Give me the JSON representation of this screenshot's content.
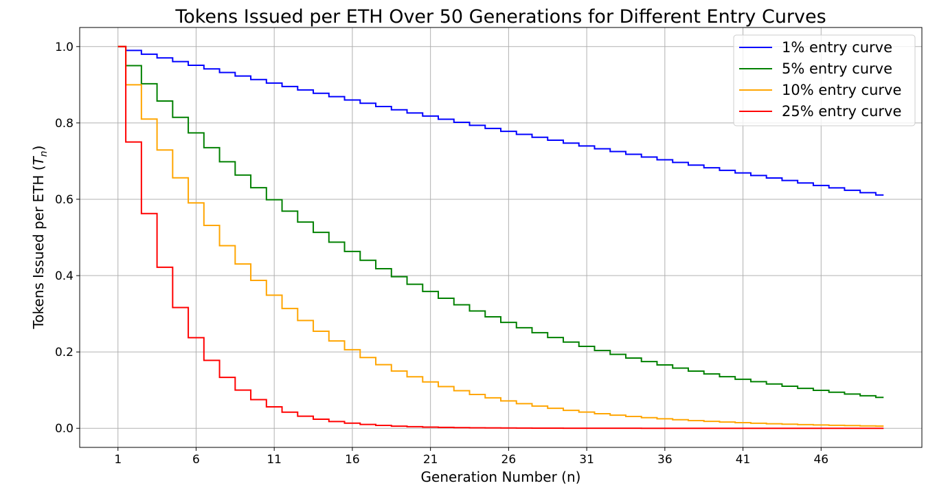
{
  "chart_data": {
    "type": "line",
    "title": "Tokens Issued per ETH Over 50 Generations for Different Entry Curves",
    "xlabel": "Generation Number (n)",
    "ylabel_prefix": "Tokens Issued per ETH (",
    "ylabel_var": "T",
    "ylabel_sub": "n",
    "ylabel_suffix": ")",
    "x_ticks": [
      1,
      6,
      11,
      16,
      21,
      26,
      31,
      36,
      41,
      46
    ],
    "x_tick_labels": [
      "1",
      "6",
      "11",
      "16",
      "21",
      "26",
      "31",
      "36",
      "41",
      "46"
    ],
    "y_ticks": [
      0.0,
      0.2,
      0.4,
      0.6,
      0.8,
      1.0
    ],
    "y_tick_labels": [
      "0.0",
      "0.2",
      "0.4",
      "0.6",
      "0.8",
      "1.0"
    ],
    "xlim": [
      -1.45,
      52.45
    ],
    "ylim": [
      -0.05,
      1.05
    ],
    "grid": true,
    "legend_position": "top-right",
    "step_style": "steps-mid",
    "generations": {
      "start": 1,
      "end": 50
    },
    "series": [
      {
        "name": "1% entry curve",
        "rate": 0.01,
        "color": "#0000ff"
      },
      {
        "name": "5% entry curve",
        "rate": 0.05,
        "color": "#008000"
      },
      {
        "name": "10% entry curve",
        "rate": 0.1,
        "color": "#ffa500"
      },
      {
        "name": "25% entry curve",
        "rate": 0.25,
        "color": "#ff0000"
      }
    ]
  }
}
